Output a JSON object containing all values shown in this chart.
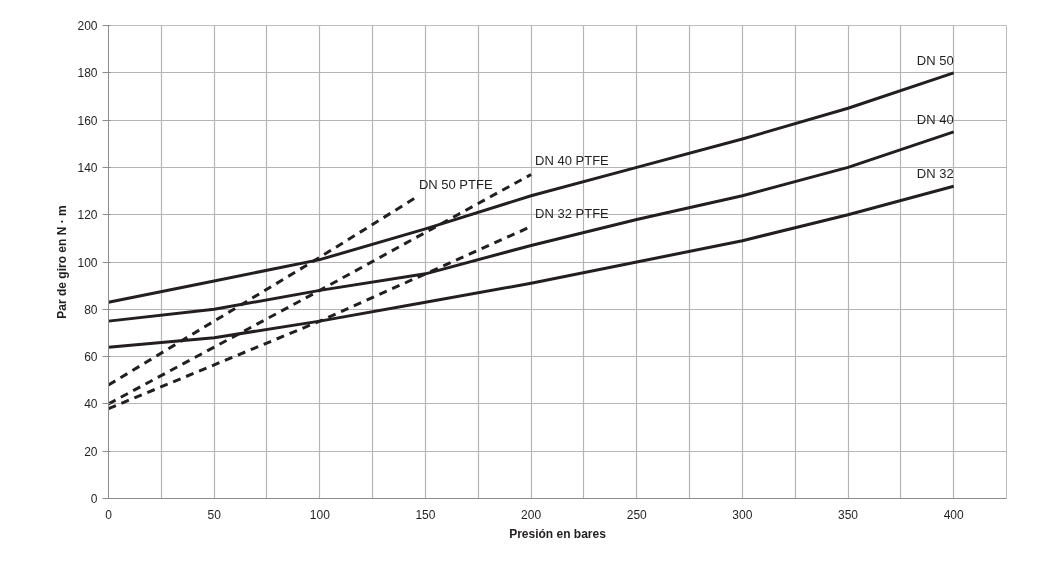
{
  "chart_data": {
    "type": "line",
    "xlabel": "Presión en bares",
    "ylabel": "Par de giro en N · m",
    "xlim": [
      0,
      425
    ],
    "ylim": [
      0,
      200
    ],
    "xticks": [
      0,
      {
        "value": 25,
        "label": null
      },
      50,
      {
        "value": 75,
        "label": null
      },
      100,
      {
        "value": 125,
        "label": null
      },
      150,
      {
        "value": 175,
        "label": null
      },
      200,
      {
        "value": 225,
        "label": null
      },
      250,
      {
        "value": 275,
        "label": null
      },
      300,
      {
        "value": 325,
        "label": null
      },
      350,
      {
        "value": 375,
        "label": null
      },
      400,
      {
        "value": 425,
        "label": null
      }
    ],
    "yticks": [
      0,
      20,
      40,
      60,
      80,
      100,
      120,
      140,
      160,
      180,
      200
    ],
    "grid": true,
    "legend": false,
    "marker": "none",
    "line_style": "solid",
    "x": [
      0,
      50,
      100,
      150,
      200,
      250,
      300,
      350,
      400
    ],
    "series": [
      {
        "name": "DN 50",
        "color": "#231f20",
        "values": [
          83,
          92,
          101,
          114,
          128,
          140,
          152,
          165,
          180
        ]
      },
      {
        "name": "DN 40",
        "color": "#231f20",
        "values": [
          75,
          80,
          88,
          95,
          107,
          118,
          128,
          140,
          155
        ]
      },
      {
        "name": "DN 32",
        "color": "#231f20",
        "values": [
          64,
          68,
          75,
          83,
          91,
          100,
          109,
          120,
          132
        ]
      },
      {
        "name": "DN 50 PTFE",
        "color": "#231f20",
        "line_style": "dashed",
        "x": [
          0,
          100,
          145
        ],
        "values": [
          48,
          102,
          127
        ]
      },
      {
        "name": "DN 40 PTFE",
        "color": "#231f20",
        "line_style": "dashed",
        "x": [
          0,
          100,
          200
        ],
        "values": [
          40,
          88,
          137
        ]
      },
      {
        "name": "DN 32 PTFE",
        "color": "#231f20",
        "line_style": "dashed",
        "x": [
          0,
          100,
          200
        ],
        "values": [
          38,
          75,
          115
        ]
      }
    ]
  }
}
